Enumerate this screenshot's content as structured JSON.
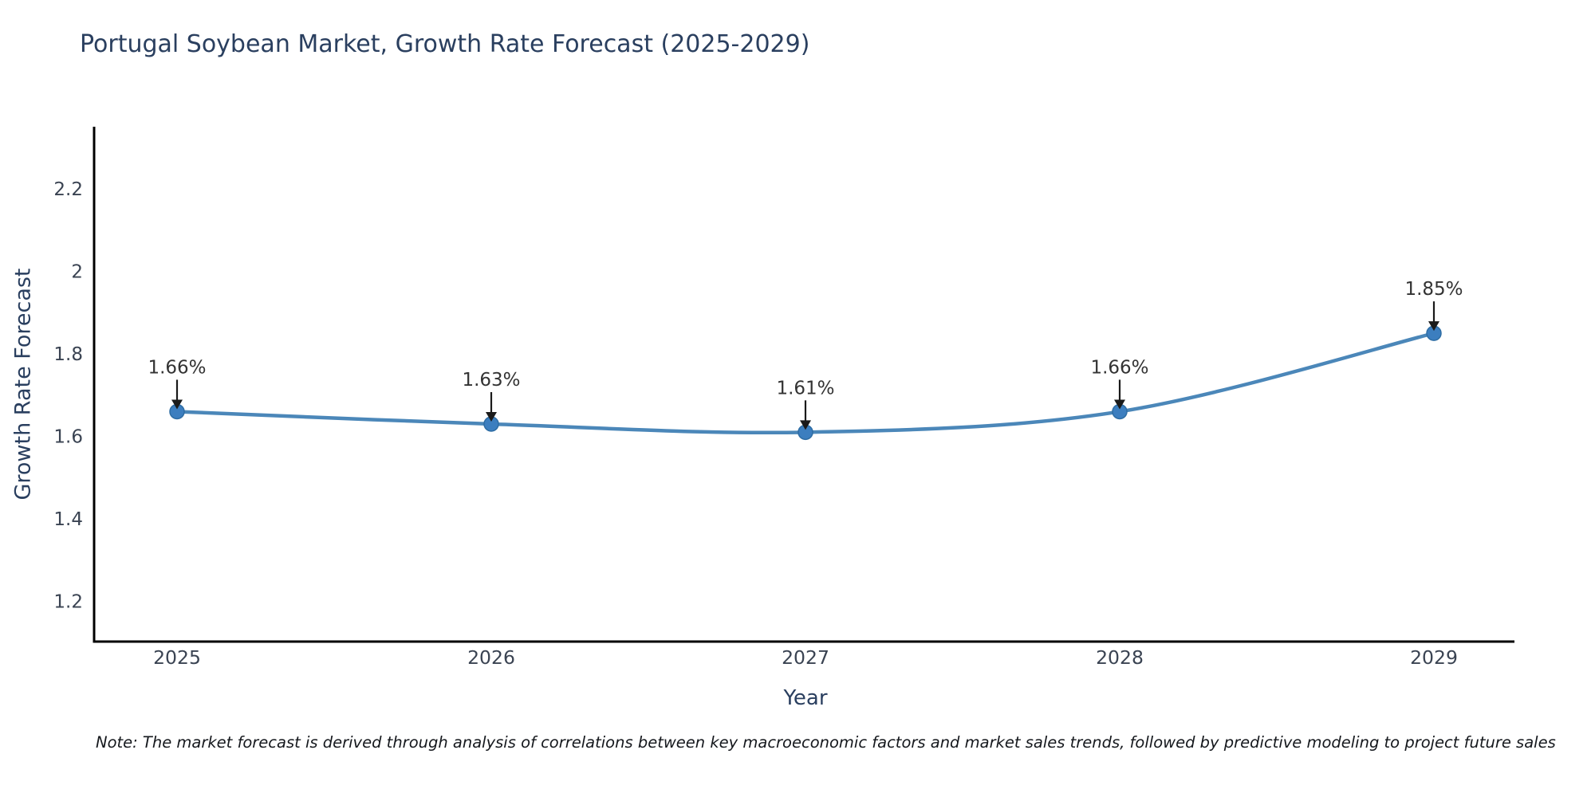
{
  "title": "Portugal Soybean Market, Growth Rate Forecast (2025-2029)",
  "note": "Note: The market forecast is derived through analysis of correlations between key macroeconomic factors and market sales trends, followed by predictive modeling to project future sales",
  "chart_data": {
    "type": "line",
    "title": "Portugal Soybean Market, Growth Rate Forecast (2025-2029)",
    "xlabel": "Year",
    "ylabel": "Growth Rate Forecast",
    "categories": [
      "2025",
      "2026",
      "2027",
      "2028",
      "2029"
    ],
    "values": [
      1.66,
      1.63,
      1.61,
      1.66,
      1.85
    ],
    "point_labels": [
      "1.66%",
      "1.63%",
      "1.61%",
      "1.66%",
      "1.85%"
    ],
    "ytick_values": [
      2.2,
      2.0,
      1.8,
      1.6,
      1.4,
      1.2
    ],
    "ytick_labels": [
      "2.2",
      "2",
      "1.8",
      "1.6",
      "1.4",
      "1.2"
    ],
    "ylim": [
      1.1,
      2.35
    ],
    "grid": false,
    "legend": "none",
    "line_shape": "spline",
    "colors": {
      "line": "#4b87b9",
      "marker": "#3c7ebf",
      "marker_edge": "#2e6da4",
      "axis": "#000000",
      "tick_text": "#3a4352",
      "annotation_text": "#333333",
      "arrow": "#1a1a1a",
      "title_text": "#2a3f5f"
    }
  }
}
